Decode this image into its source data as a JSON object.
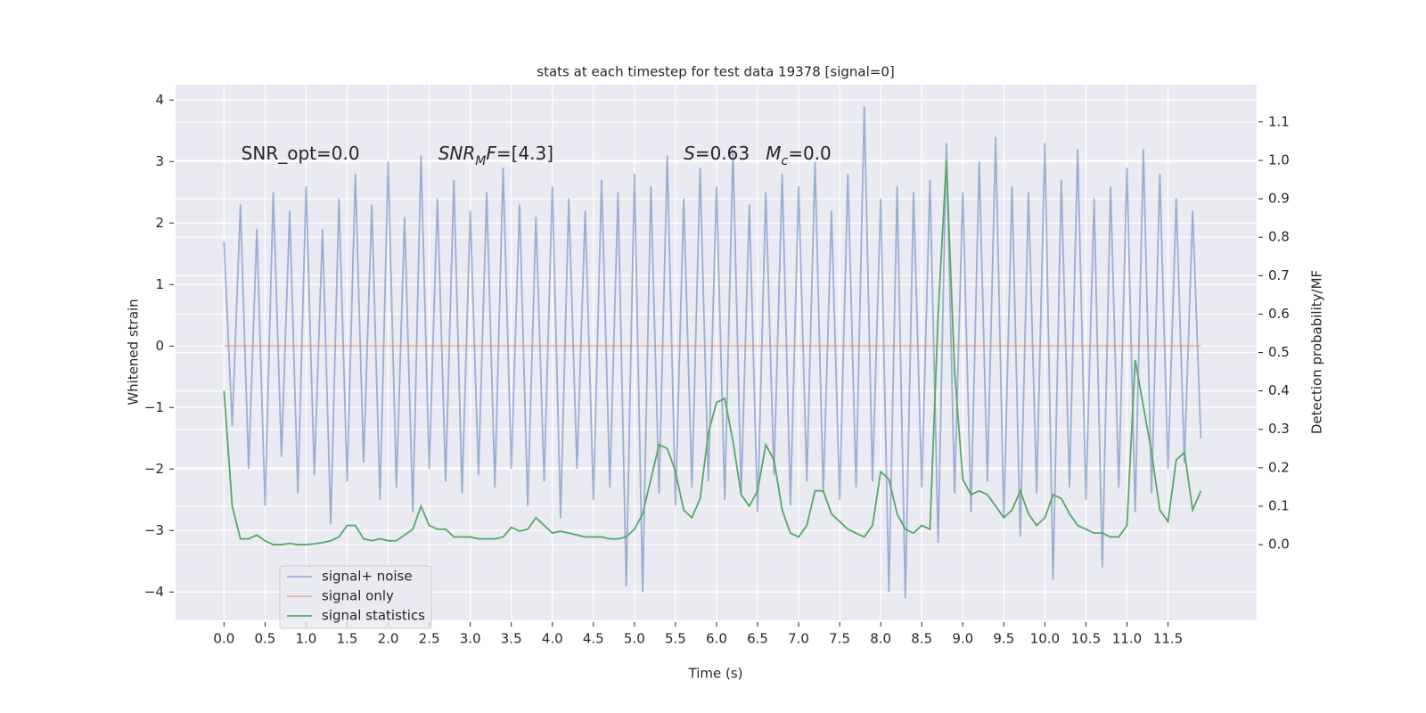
{
  "chart_data": {
    "type": "line",
    "title": "stats at each timestep for test data 19378 [signal=0]",
    "xlabel": "Time (s)",
    "ylabel": "Whitened strain",
    "y2label": "Detection probability/MF",
    "x": [
      0,
      0.1,
      0.2,
      0.3,
      0.4,
      0.5,
      0.6,
      0.7,
      0.8,
      0.9,
      1,
      1.1,
      1.2,
      1.3,
      1.4,
      1.5,
      1.6,
      1.7,
      1.8,
      1.9,
      2,
      2.1,
      2.2,
      2.3,
      2.4,
      2.5,
      2.6,
      2.7,
      2.8,
      2.9,
      3,
      3.1,
      3.2,
      3.3,
      3.4,
      3.5,
      3.6,
      3.7,
      3.8,
      3.9,
      4,
      4.1,
      4.2,
      4.3,
      4.4,
      4.5,
      4.6,
      4.7,
      4.8,
      4.9,
      5,
      5.1,
      5.2,
      5.3,
      5.4,
      5.5,
      5.6,
      5.7,
      5.8,
      5.9,
      6,
      6.1,
      6.2,
      6.3,
      6.4,
      6.5,
      6.6,
      6.7,
      6.8,
      6.9,
      7,
      7.1,
      7.2,
      7.3,
      7.4,
      7.5,
      7.6,
      7.7,
      7.8,
      7.9,
      8,
      8.1,
      8.2,
      8.3,
      8.4,
      8.5,
      8.6,
      8.7,
      8.8,
      8.9,
      9,
      9.1,
      9.2,
      9.3,
      9.4,
      9.5,
      9.6,
      9.7,
      9.8,
      9.9,
      10,
      10.1,
      10.2,
      10.3,
      10.4,
      10.5,
      10.6,
      10.7,
      10.8,
      10.9,
      11,
      11.1,
      11.2,
      11.3,
      11.4,
      11.5,
      11.6,
      11.7,
      11.8,
      11.9
    ],
    "series": [
      {
        "name": "signal+ noise",
        "color": "#4c72b0",
        "alpha": 0.5,
        "values": [
          1.7,
          -1.3,
          2.3,
          -2.0,
          1.9,
          -2.6,
          2.5,
          -1.8,
          2.2,
          -2.4,
          2.6,
          -2.1,
          1.9,
          -2.9,
          2.4,
          -2.2,
          2.8,
          -1.9,
          2.3,
          -2.5,
          3.0,
          -2.3,
          2.1,
          -2.7,
          3.1,
          -2.0,
          2.4,
          -2.2,
          2.7,
          -2.4,
          2.2,
          -2.1,
          2.5,
          -2.3,
          2.9,
          -2.0,
          2.3,
          -2.6,
          2.1,
          -2.2,
          2.6,
          -2.8,
          2.4,
          -2.0,
          2.2,
          -2.5,
          2.7,
          -2.3,
          2.5,
          -3.9,
          2.8,
          -4.0,
          2.6,
          -2.4,
          3.1,
          -2.6,
          2.4,
          -2.3,
          2.9,
          -2.2,
          2.6,
          -2.5,
          3.2,
          -2.4,
          2.3,
          -2.7,
          2.5,
          -2.1,
          2.8,
          -2.6,
          2.6,
          -2.2,
          3.0,
          -2.4,
          2.2,
          -2.5,
          2.8,
          -2.3,
          3.9,
          -2.2,
          2.4,
          -4.0,
          2.6,
          -4.1,
          2.5,
          -2.3,
          2.7,
          -3.2,
          3.3,
          -2.4,
          2.5,
          -2.7,
          3.0,
          -2.2,
          3.4,
          -2.8,
          2.6,
          -3.1,
          2.5,
          -2.4,
          3.3,
          -3.8,
          2.7,
          -2.3,
          3.2,
          -2.5,
          2.4,
          -3.6,
          2.6,
          -2.3,
          2.9,
          -2.7,
          3.2,
          -2.4,
          2.8,
          -2.0,
          2.4,
          -1.9,
          2.2,
          -1.5
        ]
      },
      {
        "name": "signal only",
        "color": "#dd8452",
        "alpha": 0.5,
        "values": [
          0,
          0,
          0,
          0,
          0,
          0,
          0,
          0,
          0,
          0,
          0,
          0,
          0,
          0,
          0,
          0,
          0,
          0,
          0,
          0,
          0,
          0,
          0,
          0,
          0,
          0,
          0,
          0,
          0,
          0,
          0,
          0,
          0,
          0,
          0,
          0,
          0,
          0,
          0,
          0,
          0,
          0,
          0,
          0,
          0,
          0,
          0,
          0,
          0,
          0,
          0,
          0,
          0,
          0,
          0,
          0,
          0,
          0,
          0,
          0,
          0,
          0,
          0,
          0,
          0,
          0,
          0,
          0,
          0,
          0,
          0,
          0,
          0,
          0,
          0,
          0,
          0,
          0,
          0,
          0,
          0,
          0,
          0,
          0,
          0,
          0,
          0,
          0,
          0,
          0,
          0,
          0,
          0,
          0,
          0,
          0,
          0,
          0,
          0,
          0,
          0,
          0,
          0,
          0,
          0,
          0,
          0,
          0,
          0,
          0,
          0,
          0,
          0,
          0,
          0,
          0,
          0,
          0,
          0,
          0
        ]
      },
      {
        "name": "signal statistics",
        "color": "#55a868",
        "alpha": 1,
        "axis": "y2",
        "values": [
          0.4,
          0.1,
          0.015,
          0.015,
          0.025,
          0.01,
          0.0,
          0.0,
          0.003,
          0.0,
          0.0,
          0.002,
          0.005,
          0.01,
          0.02,
          0.05,
          0.05,
          0.015,
          0.01,
          0.015,
          0.01,
          0.01,
          0.025,
          0.04,
          0.1,
          0.05,
          0.04,
          0.04,
          0.02,
          0.02,
          0.02,
          0.015,
          0.015,
          0.015,
          0.02,
          0.045,
          0.035,
          0.04,
          0.07,
          0.05,
          0.03,
          0.035,
          0.03,
          0.025,
          0.02,
          0.02,
          0.02,
          0.015,
          0.015,
          0.02,
          0.04,
          0.08,
          0.17,
          0.26,
          0.25,
          0.19,
          0.09,
          0.07,
          0.12,
          0.29,
          0.37,
          0.38,
          0.27,
          0.13,
          0.1,
          0.14,
          0.26,
          0.22,
          0.09,
          0.03,
          0.02,
          0.05,
          0.14,
          0.14,
          0.08,
          0.06,
          0.04,
          0.03,
          0.02,
          0.05,
          0.19,
          0.17,
          0.08,
          0.04,
          0.03,
          0.05,
          0.04,
          0.6,
          1.0,
          0.45,
          0.17,
          0.13,
          0.14,
          0.13,
          0.1,
          0.07,
          0.09,
          0.14,
          0.08,
          0.05,
          0.07,
          0.13,
          0.12,
          0.08,
          0.05,
          0.04,
          0.03,
          0.03,
          0.02,
          0.02,
          0.05,
          0.48,
          0.36,
          0.24,
          0.09,
          0.06,
          0.22,
          0.24,
          0.09,
          0.14
        ]
      }
    ],
    "xlim": [
      -0.59,
      12.58
    ],
    "xticks": [
      {
        "value": 0,
        "label": "0.0"
      },
      {
        "value": 0.5,
        "label": "0.5"
      },
      {
        "value": 1,
        "label": "1.0"
      },
      {
        "value": 1.5,
        "label": "1.5"
      },
      {
        "value": 2,
        "label": "2.0"
      },
      {
        "value": 2.5,
        "label": "2.5"
      },
      {
        "value": 3,
        "label": "3.0"
      },
      {
        "value": 3.5,
        "label": "3.5"
      },
      {
        "value": 4,
        "label": "4.0"
      },
      {
        "value": 4.5,
        "label": "4.5"
      },
      {
        "value": 5,
        "label": "5.0"
      },
      {
        "value": 5.5,
        "label": "5.5"
      },
      {
        "value": 6,
        "label": "6.0"
      },
      {
        "value": 6.5,
        "label": "6.5"
      },
      {
        "value": 7,
        "label": "7.0"
      },
      {
        "value": 7.5,
        "label": "7.5"
      },
      {
        "value": 8,
        "label": "8.0"
      },
      {
        "value": 8.5,
        "label": "8.5"
      },
      {
        "value": 9,
        "label": "9.0"
      },
      {
        "value": 9.5,
        "label": "9.5"
      },
      {
        "value": 10,
        "label": "10.0"
      },
      {
        "value": 10.5,
        "label": "10.5"
      },
      {
        "value": 11,
        "label": "11.0"
      },
      {
        "value": 11.5,
        "label": "11.5"
      }
    ],
    "ylim": [
      -4.46,
      4.25
    ],
    "yticks": [
      {
        "value": -4,
        "label": "−4"
      },
      {
        "value": -3,
        "label": "−3"
      },
      {
        "value": -2,
        "label": "−2"
      },
      {
        "value": -1,
        "label": "−1"
      },
      0,
      1,
      2,
      3,
      4
    ],
    "y2lim": [
      -0.197,
      1.197
    ],
    "y2ticks": [
      {
        "value": 0,
        "label": "0.0"
      },
      {
        "value": 0.1,
        "label": "0.1"
      },
      {
        "value": 0.2,
        "label": "0.2"
      },
      {
        "value": 0.3,
        "label": "0.3"
      },
      {
        "value": 0.4,
        "label": "0.4"
      },
      {
        "value": 0.5,
        "label": "0.5"
      },
      {
        "value": 0.6,
        "label": "0.6"
      },
      {
        "value": 0.7,
        "label": "0.7"
      },
      {
        "value": 0.8,
        "label": "0.8"
      },
      {
        "value": 0.9,
        "label": "0.9"
      },
      {
        "value": 1,
        "label": "1.0"
      },
      {
        "value": 1.1,
        "label": "1.1"
      }
    ],
    "grid": true,
    "legend": "lower left",
    "annotations": [
      {
        "x": 0.21,
        "y": 3.12,
        "parts": [
          {
            "text": "SNR_opt=0.0"
          }
        ]
      },
      {
        "x": 2.61,
        "y": 3.12,
        "parts": [
          {
            "text": "SNR",
            "italic": true
          },
          {
            "text": "M",
            "italic": true,
            "sub": true
          },
          {
            "text": "F",
            "italic": true
          },
          {
            "text": "=[4.3]"
          }
        ]
      },
      {
        "x": 5.6,
        "y": 3.12,
        "parts": [
          {
            "text": "S",
            "italic": true
          },
          {
            "text": "=0.63"
          }
        ]
      },
      {
        "x": 6.6,
        "y": 3.12,
        "parts": [
          {
            "text": "M",
            "italic": true
          },
          {
            "text": "c",
            "italic": true,
            "sub": true
          },
          {
            "text": "=0.0"
          }
        ]
      }
    ]
  }
}
